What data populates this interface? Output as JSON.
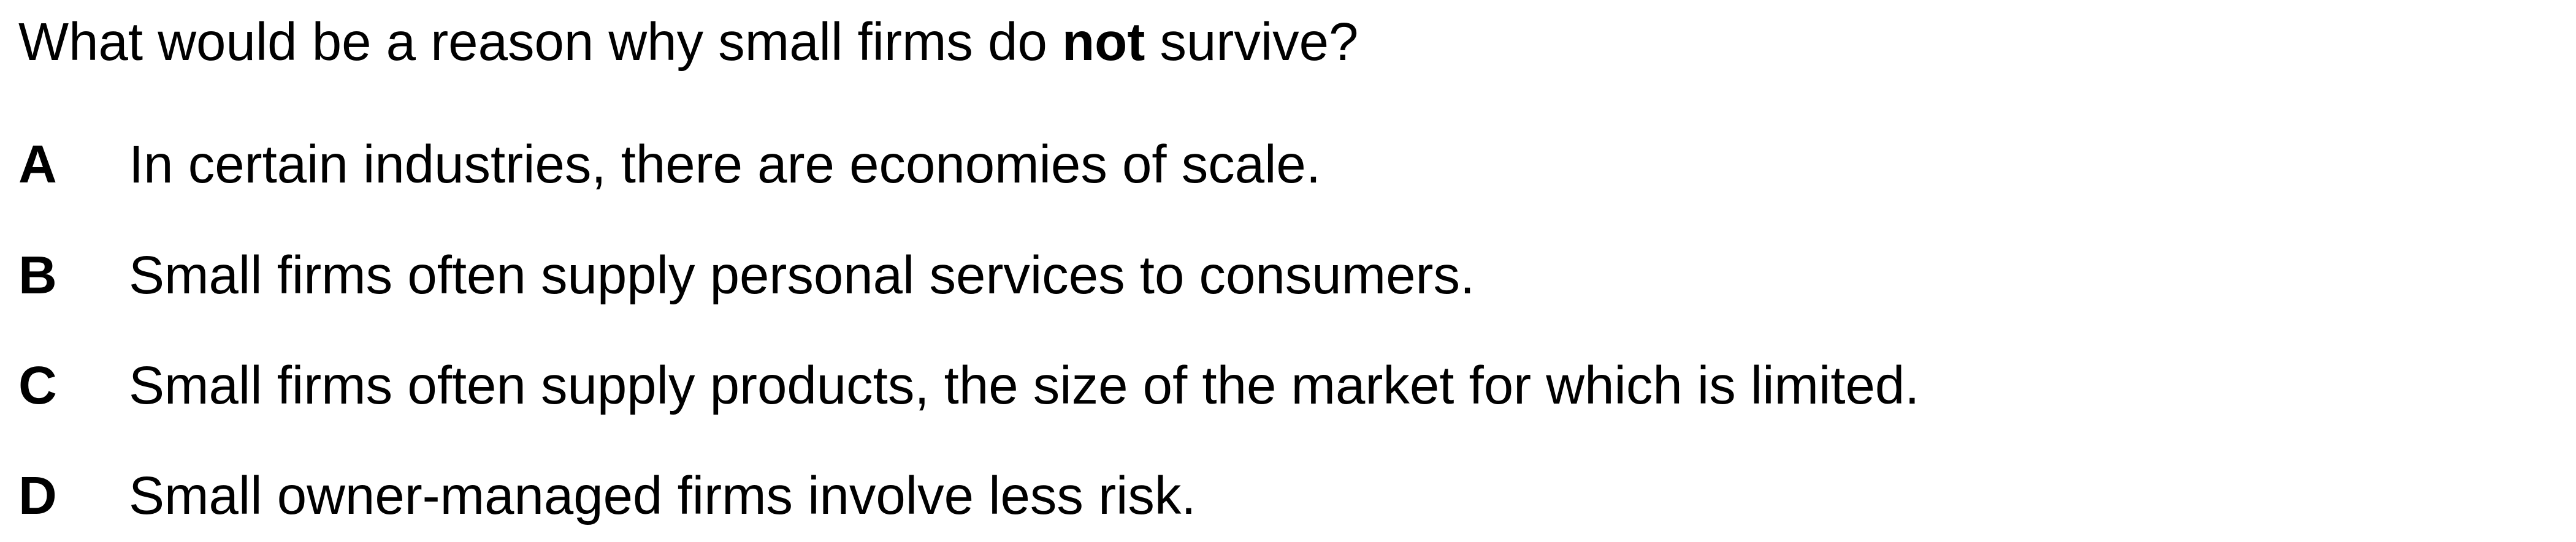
{
  "question": {
    "before": "What would be a reason why small firms do ",
    "emphasis": "not",
    "after": " survive?"
  },
  "options": [
    {
      "letter": "A",
      "text": "In certain industries, there are economies of scale."
    },
    {
      "letter": "B",
      "text": "Small firms often supply personal services to consumers."
    },
    {
      "letter": "C",
      "text": "Small firms often supply products, the size of the market for which is limited."
    },
    {
      "letter": "D",
      "text": "Small owner-managed firms involve less risk."
    }
  ]
}
